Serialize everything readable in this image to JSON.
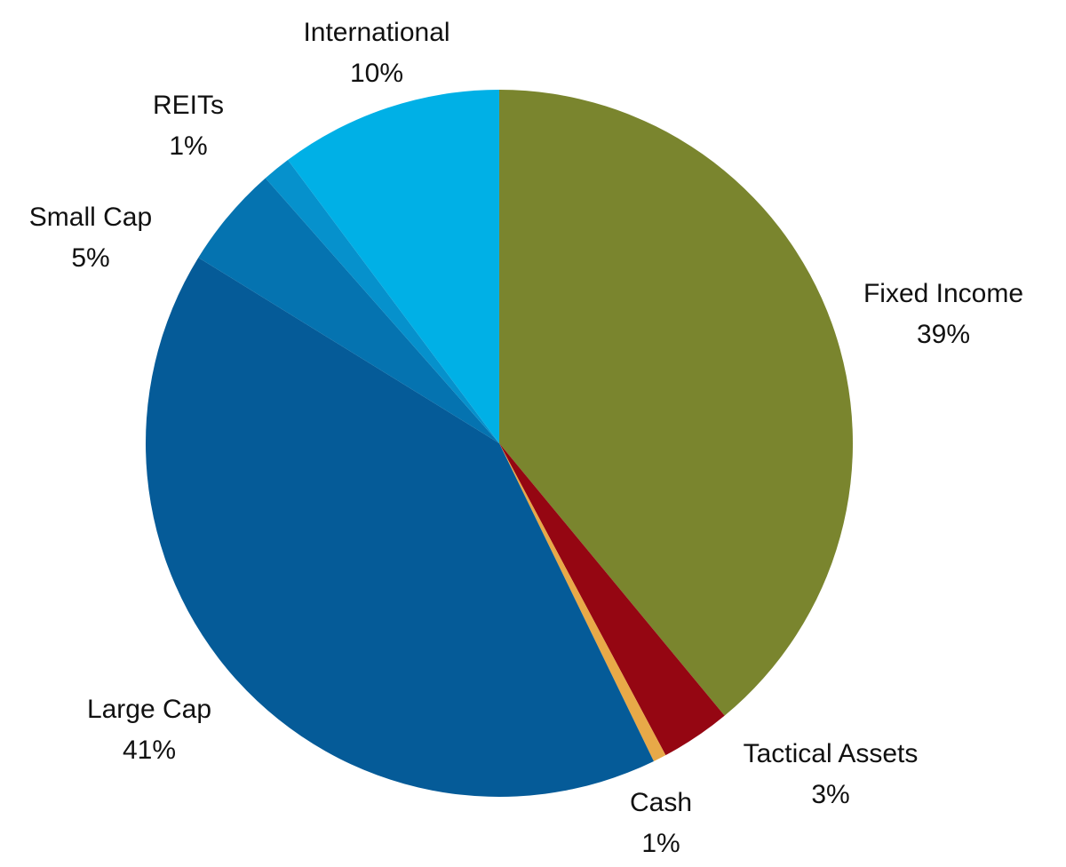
{
  "chart_data": {
    "type": "pie",
    "title": "",
    "start_angle_deg": 0,
    "direction": "clockwise",
    "legend": "none",
    "slices": [
      {
        "name": "Fixed Income",
        "label": "39%",
        "value": 39.0,
        "color": "#7a852e"
      },
      {
        "name": "Tactical Assets",
        "label": "3%",
        "value": 3.2,
        "color": "#950612"
      },
      {
        "name": "Cash",
        "label": "1%",
        "value": 0.6,
        "color": "#e8a948"
      },
      {
        "name": "Large Cap",
        "label": "41%",
        "value": 41.0,
        "color": "#055b98"
      },
      {
        "name": "Small Cap",
        "label": "5%",
        "value": 4.7,
        "color": "#0573b0"
      },
      {
        "name": "REITs",
        "label": "1%",
        "value": 1.3,
        "color": "#0691cc"
      },
      {
        "name": "International",
        "label": "10%",
        "value": 10.2,
        "color": "#00b0e6"
      }
    ]
  }
}
